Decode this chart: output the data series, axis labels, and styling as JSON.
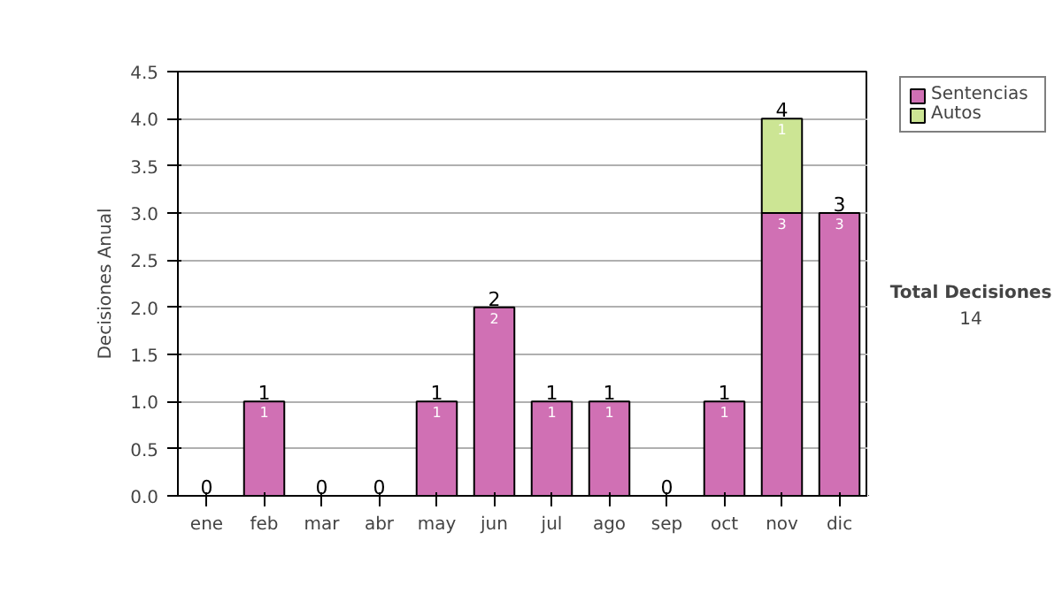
{
  "chart_data": {
    "type": "bar",
    "stacked": true,
    "ylabel": "Decisiones Anual",
    "categories": [
      "ene",
      "feb",
      "mar",
      "abr",
      "may",
      "jun",
      "jul",
      "ago",
      "sep",
      "oct",
      "nov",
      "dic"
    ],
    "series": [
      {
        "name": "Sentencias",
        "color": "#d070b4",
        "values": [
          0,
          1,
          0,
          0,
          1,
          2,
          1,
          1,
          0,
          1,
          3,
          3
        ],
        "value_labels": [
          null,
          "1",
          null,
          null,
          "1",
          "2",
          "1",
          "1",
          null,
          "1",
          "3",
          "3"
        ]
      },
      {
        "name": "Autos",
        "color": "#cce594",
        "values": [
          0,
          0,
          0,
          0,
          0,
          0,
          0,
          0,
          0,
          0,
          1,
          0
        ],
        "value_labels": [
          null,
          null,
          null,
          null,
          null,
          null,
          null,
          null,
          null,
          null,
          "1",
          null
        ]
      }
    ],
    "totals": [
      "0",
      "1",
      "0",
      "0",
      "1",
      "2",
      "1",
      "1",
      "0",
      "1",
      "4",
      "3"
    ],
    "ylim": [
      0,
      4.5
    ],
    "yticks": [
      {
        "value": 0,
        "label": "0.0"
      },
      {
        "value": 0.5,
        "label": "0.5"
      },
      {
        "value": 1,
        "label": "1.0"
      },
      {
        "value": 1.5,
        "label": "1.5"
      },
      {
        "value": 2,
        "label": "2.0"
      },
      {
        "value": 2.5,
        "label": "2.5"
      },
      {
        "value": 3,
        "label": "3.0"
      },
      {
        "value": 3.5,
        "label": "3.5"
      },
      {
        "value": 4,
        "label": "4.0"
      },
      {
        "value": 4.5,
        "label": "4.5"
      }
    ],
    "grid": "y",
    "legend": "right",
    "annotations": [
      "Total Decisiones",
      "14"
    ]
  }
}
